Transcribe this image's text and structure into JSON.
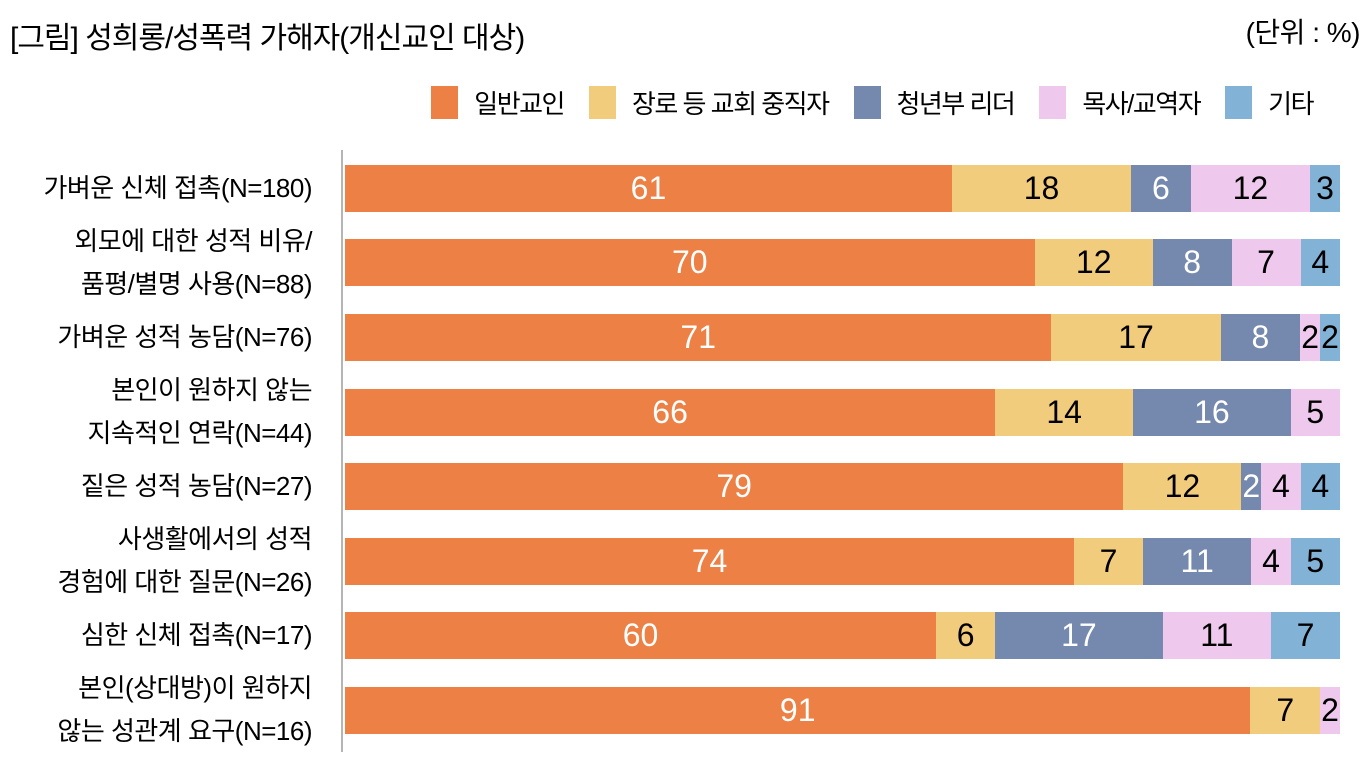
{
  "chart_data": {
    "type": "bar",
    "variant": "horizontal-stacked",
    "title": "[그림] 성희롱/성폭력 가해자(개신교인 대상)",
    "unit_label": "(단위 : %)",
    "axis_color": "#b5b5b5",
    "categories": [
      {
        "lines": [
          "가벼운 신체 접촉(N=180)"
        ]
      },
      {
        "lines": [
          "외모에 대한 성적 비유/",
          "품평/별명 사용(N=88)"
        ]
      },
      {
        "lines": [
          "가벼운 성적 농담(N=76)"
        ]
      },
      {
        "lines": [
          "본인이 원하지 않는",
          "지속적인 연락(N=44)"
        ]
      },
      {
        "lines": [
          "짙은 성적 농담(N=27)"
        ]
      },
      {
        "lines": [
          "사생활에서의 성적",
          "경험에 대한 질문(N=26)"
        ]
      },
      {
        "lines": [
          "심한 신체 접촉(N=17)"
        ]
      },
      {
        "lines": [
          "본인(상대방)이 원하지",
          "않는 성관계 요구(N=16)"
        ]
      }
    ],
    "series": [
      {
        "name": "일반교인",
        "color": "#ed8044",
        "label_color": "#ffffff",
        "values": [
          61,
          70,
          71,
          66,
          79,
          74,
          60,
          91
        ]
      },
      {
        "name": "장로 등 교회 중직자",
        "color": "#f2cc7d",
        "label_color": "#000000",
        "values": [
          18,
          12,
          17,
          14,
          12,
          7,
          6,
          7
        ]
      },
      {
        "name": "청년부 리더",
        "color": "#7588ae",
        "label_color": "#ffffff",
        "values": [
          6,
          8,
          8,
          16,
          2,
          11,
          17,
          0
        ]
      },
      {
        "name": "목사/교역자",
        "color": "#efc9ed",
        "label_color": "#000000",
        "values": [
          12,
          7,
          2,
          5,
          4,
          4,
          11,
          2
        ]
      },
      {
        "name": "기타",
        "color": "#82b3d6",
        "label_color": "#000000",
        "values": [
          3,
          4,
          2,
          0,
          4,
          5,
          7,
          0
        ]
      }
    ],
    "legend_position": "top-right",
    "xlim": [
      0,
      100
    ]
  }
}
